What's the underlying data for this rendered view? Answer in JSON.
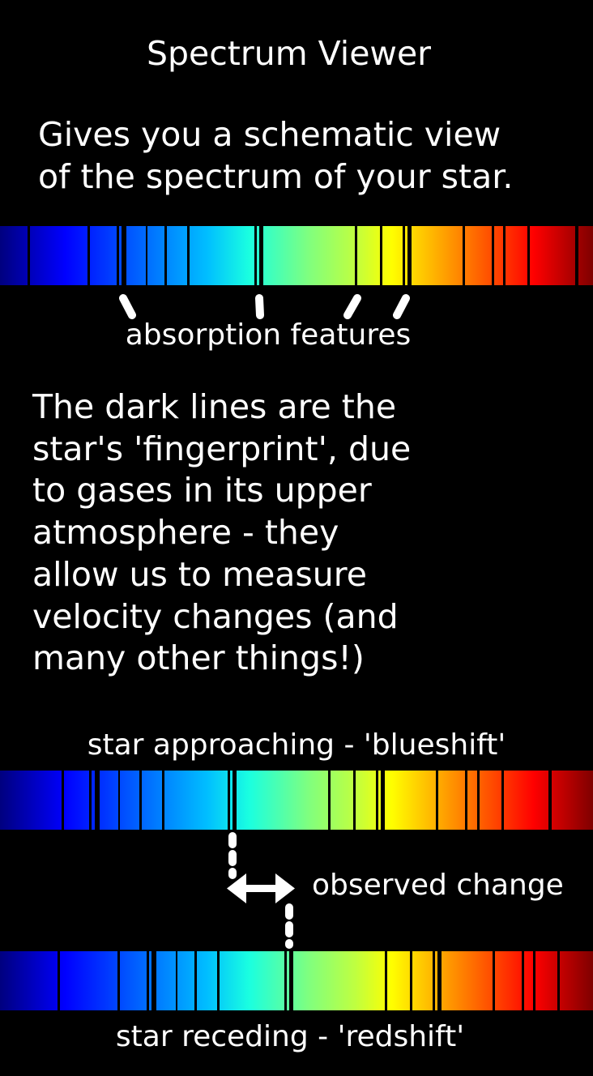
{
  "title": "Spectrum Viewer",
  "intro_lines": [
    "Gives you a schematic view",
    "of the spectrum of your star."
  ],
  "absorption_label": "absorption features",
  "explanation_lines": [
    "The dark lines are the",
    "star's 'fingerprint', due",
    "to gases in its upper",
    "atmosphere - they",
    "allow us to measure",
    "velocity changes (and",
    "many other things!)"
  ],
  "blueshift_label": "star approaching - 'blueshift'",
  "change_label": "observed change",
  "redshift_label": "star receding - 'redshift'",
  "colors": {
    "background": "#000000",
    "text": "#ffffff",
    "spectrum_stops": [
      "#00007f",
      "#0000ff",
      "#007fff",
      "#00ffff",
      "#7fff7f",
      "#ffff00",
      "#ff7f00",
      "#ff0000",
      "#7f0000"
    ],
    "line_color": "#000000"
  },
  "icons": {
    "arrow": "double-headed-arrow-icon",
    "pointer": "tick-mark-icon"
  }
}
